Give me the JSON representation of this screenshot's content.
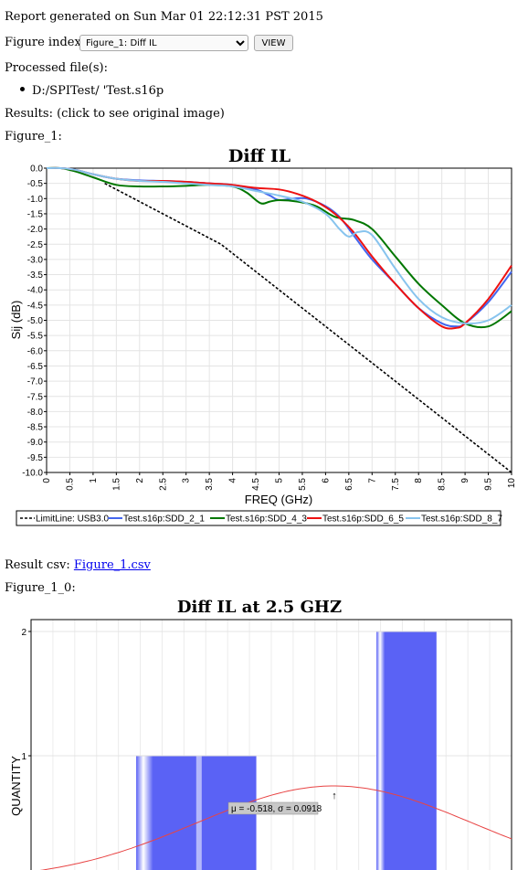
{
  "report": {
    "generated_text": "Report generated on Sun Mar 01 22:12:31 PST 2015",
    "figure_index_label": "Figure index:",
    "figure_selected": "Figure_1: Diff IL",
    "view_label": "VIEW",
    "processed_label": "Processed file(s):",
    "processed_file": "D:/SPITest/ 'Test.s16p",
    "results_label": "Results: (click to see original image)",
    "figure1_label": "Figure_1:",
    "result_csv_label": "Result csv:",
    "result_csv_link": "Figure_1.csv",
    "figure10_label": "Figure_1_0:"
  },
  "colors": {
    "limit": "#000000",
    "sdd21": "#4466ee",
    "sdd43": "#007700",
    "sdd65": "#ee1111",
    "sdd87": "#88c4ee",
    "bar": "#5a62f5",
    "fit": "#e84444"
  },
  "chart_data": [
    {
      "type": "line",
      "title": "Diff IL",
      "xlabel": "FREQ (GHz)",
      "ylabel": "Sij  (dB)",
      "xlim": [
        0,
        10
      ],
      "ylim": [
        -10,
        0
      ],
      "xticks": [
        "0",
        "0.5",
        "1",
        "1.5",
        "2",
        "2.5",
        "3",
        "3.5",
        "4",
        "4.5",
        "5",
        "5.5",
        "6",
        "6.5",
        "7",
        "7.5",
        "8",
        "8.5",
        "9",
        "9.5",
        "10"
      ],
      "yticks": [
        "0.0",
        "-0.5",
        "-1.0",
        "-1.5",
        "-2.0",
        "-2.5",
        "-3.0",
        "-3.5",
        "-4.0",
        "-4.5",
        "-5.0",
        "-5.5",
        "-6.0",
        "-6.5",
        "-7.0",
        "-7.5",
        "-8.0",
        "-8.5",
        "-9.0",
        "-9.5",
        "-10.0"
      ],
      "grid": true,
      "legend": "bottom",
      "series": [
        {
          "name": "LimitLine: USB3.0",
          "dashed": true,
          "color_key": "limit",
          "x": [
            1.25,
            3.75,
            10
          ],
          "y": [
            -0.5,
            -2.5,
            -10
          ]
        },
        {
          "name": "Test.s16p:SDD_2_1",
          "color_key": "sdd21",
          "x": [
            0,
            0.3,
            0.6,
            1,
            1.5,
            2,
            2.5,
            3,
            3.5,
            4,
            4.5,
            4.8,
            5,
            5.3,
            5.6,
            6,
            6.3,
            6.6,
            7,
            7.5,
            8,
            8.5,
            8.8,
            9,
            9.5,
            10
          ],
          "y": [
            0,
            0,
            -0.05,
            -0.2,
            -0.35,
            -0.4,
            -0.42,
            -0.45,
            -0.5,
            -0.55,
            -0.7,
            -0.9,
            -1.05,
            -1.0,
            -1.0,
            -1.25,
            -1.6,
            -2.2,
            -3.0,
            -3.8,
            -4.6,
            -5.1,
            -5.2,
            -5.1,
            -4.4,
            -3.4
          ]
        },
        {
          "name": "Test.s16p:SDD_4_3",
          "color_key": "sdd43",
          "x": [
            0,
            0.3,
            0.6,
            1,
            1.5,
            2,
            2.5,
            3,
            3.5,
            4,
            4.3,
            4.6,
            4.8,
            5,
            5.4,
            5.8,
            6.2,
            6.6,
            7,
            7.5,
            8,
            8.5,
            9,
            9.5,
            10
          ],
          "y": [
            0,
            0,
            -0.1,
            -0.3,
            -0.55,
            -0.6,
            -0.6,
            -0.58,
            -0.55,
            -0.6,
            -0.8,
            -1.15,
            -1.1,
            -1.05,
            -1.1,
            -1.25,
            -1.6,
            -1.7,
            -2.0,
            -2.9,
            -3.8,
            -4.5,
            -5.1,
            -5.2,
            -4.7
          ]
        },
        {
          "name": "Test.s16p:SDD_6_5",
          "color_key": "sdd65",
          "x": [
            0,
            0.3,
            0.6,
            1,
            1.5,
            2,
            2.5,
            3,
            3.5,
            4,
            4.5,
            5,
            5.4,
            5.8,
            6.2,
            6.6,
            7,
            7.5,
            8,
            8.5,
            8.8,
            9,
            9.5,
            10
          ],
          "y": [
            0,
            0,
            -0.05,
            -0.2,
            -0.35,
            -0.42,
            -0.42,
            -0.45,
            -0.5,
            -0.55,
            -0.65,
            -0.7,
            -0.85,
            -1.1,
            -1.5,
            -2.1,
            -2.9,
            -3.8,
            -4.6,
            -5.2,
            -5.25,
            -5.1,
            -4.3,
            -3.2
          ]
        },
        {
          "name": "Test.s16p:SDD_8_7",
          "color_key": "sdd87",
          "x": [
            0,
            0.3,
            0.6,
            1,
            1.5,
            2,
            2.5,
            3,
            3.5,
            4,
            4.5,
            5,
            5.5,
            6,
            6.3,
            6.5,
            6.7,
            7,
            7.5,
            8,
            8.5,
            9,
            9.5,
            10
          ],
          "y": [
            0,
            0,
            -0.05,
            -0.2,
            -0.35,
            -0.42,
            -0.45,
            -0.5,
            -0.55,
            -0.6,
            -0.75,
            -0.9,
            -1.1,
            -1.5,
            -2.0,
            -2.25,
            -2.1,
            -2.2,
            -3.3,
            -4.3,
            -4.9,
            -5.1,
            -5.0,
            -4.5
          ]
        }
      ]
    },
    {
      "type": "bar",
      "title": "Diff IL at  2.5 GHZ",
      "ylabel": "QUANTITY",
      "yticks": [
        "1",
        "2"
      ],
      "ylim_visible": [
        0,
        2
      ],
      "bars": [
        {
          "from": -0.65,
          "to": -0.57,
          "count": 1
        },
        {
          "from": -0.49,
          "to": -0.45,
          "count": 2
        }
      ],
      "fit_label": "μ = -0.518, σ = 0.0918",
      "mu": -0.518,
      "sigma": 0.0918,
      "xlim": [
        -0.72,
        -0.4
      ]
    }
  ]
}
